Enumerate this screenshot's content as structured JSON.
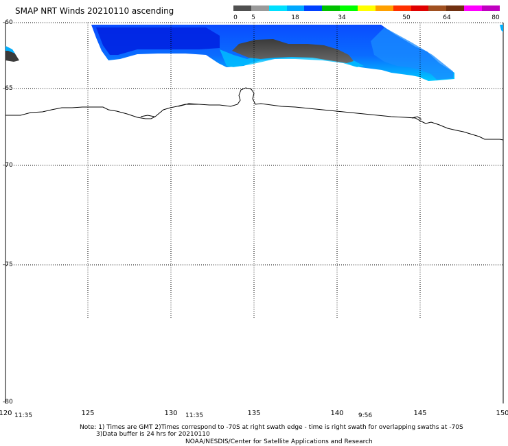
{
  "title": "SMAP NRT Winds 20210110 ascending",
  "scale": {
    "labels": [
      "0",
      "5",
      "18",
      "34",
      "50",
      "64",
      "80"
    ],
    "colors": [
      "#505050",
      "#9a9a9a",
      "#00e0ff",
      "#00a8ff",
      "#0040ff",
      "#00c000",
      "#00ff00",
      "#ffff00",
      "#ffa000",
      "#ff3000",
      "#e00000",
      "#a05020",
      "#703010",
      "#ff00ff",
      "#c000c0"
    ]
  },
  "map": {
    "lat_labels": [
      "-60",
      "-65",
      "-70",
      "-75",
      "-80"
    ],
    "lon_labels": [
      "120",
      "125",
      "130",
      "135",
      "140",
      "145",
      "150"
    ],
    "swath_times": [
      "11:35",
      "11:35",
      "9:56"
    ],
    "colors": {
      "wind_blue": "#0a5cff",
      "wind_light_blue": "#00b8ff",
      "wind_dark_blue": "#0018d8",
      "calm_gray": "#4a4a4a",
      "coastline": "#000000",
      "grid": "#000000"
    }
  },
  "notes": {
    "line1": "Note: 1) Times are GMT 2)Times correspond to -70S at right swath edge - time is right swath for overlapping swaths at -70S",
    "line2": "3)Data buffer is 24 hrs for 20210110",
    "line3": "NOAA/NESDIS/Center for Satellite Applications and Research"
  }
}
